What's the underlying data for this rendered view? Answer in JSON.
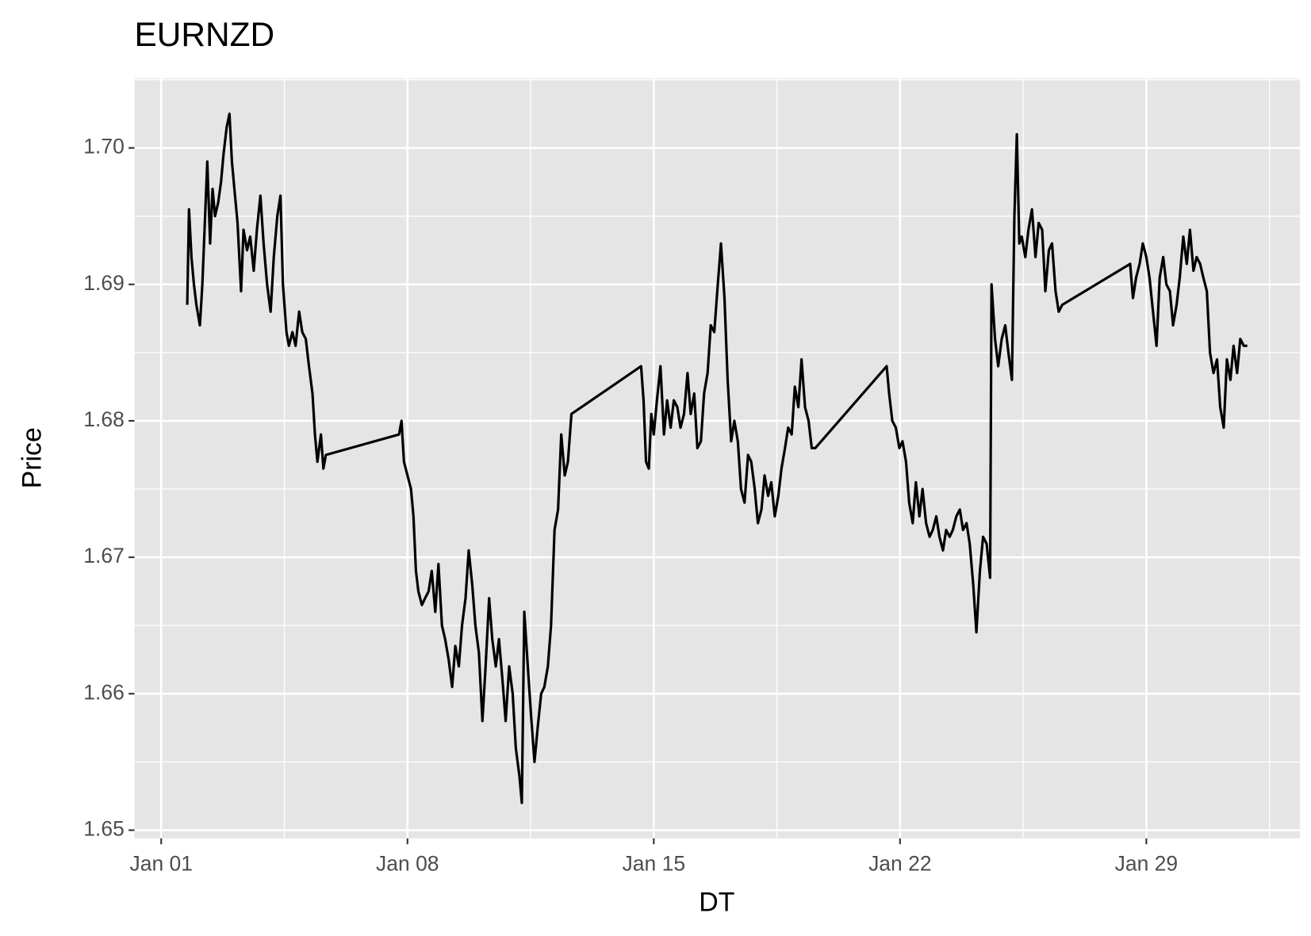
{
  "chart_data": {
    "type": "line",
    "title": "EURNZD",
    "x_label": "DT",
    "y_label": "Price",
    "x": [
      1.74,
      1.79,
      1.86,
      1.93,
      2.0,
      2.1,
      2.17,
      2.24,
      2.31,
      2.39,
      2.46,
      2.53,
      2.62,
      2.7,
      2.77,
      2.86,
      2.94,
      3.01,
      3.08,
      3.17,
      3.27,
      3.34,
      3.44,
      3.53,
      3.63,
      3.72,
      3.82,
      3.91,
      4.01,
      4.11,
      4.2,
      4.3,
      4.39,
      4.46,
      4.56,
      4.63,
      4.73,
      4.82,
      4.92,
      5.01,
      5.11,
      5.2,
      5.3,
      5.37,
      5.44,
      5.54,
      5.61,
      5.68,
      7.76,
      7.83,
      7.9,
      8.0,
      8.1,
      8.17,
      8.24,
      8.31,
      8.41,
      8.5,
      8.6,
      8.69,
      8.79,
      8.88,
      8.98,
      9.07,
      9.17,
      9.27,
      9.36,
      9.46,
      9.55,
      9.65,
      9.74,
      9.84,
      9.93,
      10.03,
      10.13,
      10.22,
      10.32,
      10.41,
      10.51,
      10.6,
      10.7,
      10.79,
      10.89,
      10.99,
      11.08,
      11.18,
      11.25,
      11.32,
      11.42,
      11.51,
      11.61,
      11.7,
      11.8,
      11.89,
      11.99,
      12.08,
      12.18,
      12.28,
      12.37,
      12.47,
      12.56,
      12.66,
      14.64,
      14.71,
      14.78,
      14.86,
      14.93,
      15.0,
      15.09,
      15.19,
      15.29,
      15.38,
      15.48,
      15.57,
      15.67,
      15.76,
      15.86,
      15.96,
      16.05,
      16.15,
      16.24,
      16.34,
      16.43,
      16.53,
      16.62,
      16.72,
      16.82,
      16.91,
      17.01,
      17.1,
      17.2,
      17.29,
      17.39,
      17.48,
      17.58,
      17.68,
      17.77,
      17.87,
      17.96,
      18.06,
      18.15,
      18.25,
      18.34,
      18.44,
      18.54,
      18.63,
      18.73,
      18.82,
      18.92,
      19.01,
      19.11,
      19.2,
      19.3,
      19.4,
      19.49,
      19.59,
      21.62,
      21.69,
      21.78,
      21.88,
      21.98,
      22.07,
      22.17,
      22.26,
      22.36,
      22.45,
      22.55,
      22.64,
      22.74,
      22.84,
      22.93,
      23.03,
      23.12,
      23.22,
      23.31,
      23.41,
      23.5,
      23.6,
      23.7,
      23.79,
      23.89,
      23.98,
      24.08,
      24.17,
      24.27,
      24.36,
      24.46,
      24.56,
      24.6,
      24.7,
      24.79,
      24.89,
      24.99,
      25.08,
      25.18,
      25.25,
      25.32,
      25.39,
      25.46,
      25.56,
      25.65,
      25.75,
      25.85,
      25.94,
      26.04,
      26.13,
      26.23,
      26.32,
      26.42,
      26.51,
      26.61,
      28.54,
      28.62,
      28.71,
      28.81,
      28.9,
      29.0,
      29.09,
      29.19,
      29.29,
      29.38,
      29.48,
      29.57,
      29.67,
      29.76,
      29.86,
      29.95,
      30.05,
      30.15,
      30.24,
      30.34,
      30.43,
      30.53,
      30.62,
      30.72,
      30.81,
      30.91,
      31.01,
      31.1,
      31.2,
      31.29,
      31.39,
      31.48,
      31.58,
      31.67,
      31.77,
      31.87
    ],
    "values": [
      1.6885,
      1.6955,
      1.692,
      1.69,
      1.6885,
      1.687,
      1.69,
      1.6945,
      1.699,
      1.693,
      1.697,
      1.695,
      1.696,
      1.6975,
      1.6995,
      1.7015,
      1.7025,
      1.699,
      1.697,
      1.6945,
      1.6895,
      1.694,
      1.6925,
      1.6935,
      1.691,
      1.694,
      1.6965,
      1.693,
      1.69,
      1.688,
      1.692,
      1.695,
      1.6965,
      1.69,
      1.6865,
      1.6855,
      1.6865,
      1.6855,
      1.688,
      1.6865,
      1.686,
      1.684,
      1.682,
      1.679,
      1.677,
      1.679,
      1.6765,
      1.6775,
      1.679,
      1.68,
      1.677,
      1.676,
      1.675,
      1.673,
      1.669,
      1.6675,
      1.6665,
      1.667,
      1.6675,
      1.669,
      1.666,
      1.6695,
      1.665,
      1.664,
      1.6625,
      1.6605,
      1.6635,
      1.662,
      1.665,
      1.667,
      1.6705,
      1.668,
      1.665,
      1.663,
      1.658,
      1.662,
      1.667,
      1.664,
      1.662,
      1.664,
      1.661,
      1.658,
      1.662,
      1.66,
      1.656,
      1.654,
      1.652,
      1.666,
      1.662,
      1.6585,
      1.655,
      1.6575,
      1.66,
      1.6605,
      1.662,
      1.665,
      1.672,
      1.6735,
      1.679,
      1.676,
      1.677,
      1.6805,
      1.684,
      1.6815,
      1.677,
      1.6765,
      1.6805,
      1.679,
      1.6815,
      1.684,
      1.679,
      1.6815,
      1.6795,
      1.6815,
      1.681,
      1.6795,
      1.6805,
      1.6835,
      1.6805,
      1.682,
      1.678,
      1.6785,
      1.682,
      1.6835,
      1.687,
      1.6865,
      1.69,
      1.693,
      1.689,
      1.683,
      1.6785,
      1.68,
      1.6785,
      1.675,
      1.674,
      1.6775,
      1.677,
      1.675,
      1.6725,
      1.6735,
      1.676,
      1.6745,
      1.6755,
      1.673,
      1.6745,
      1.6765,
      1.678,
      1.6795,
      1.679,
      1.6825,
      1.681,
      1.6845,
      1.681,
      1.68,
      1.678,
      1.678,
      1.684,
      1.682,
      1.68,
      1.6795,
      1.678,
      1.6785,
      1.677,
      1.674,
      1.6725,
      1.6755,
      1.673,
      1.675,
      1.6725,
      1.6715,
      1.672,
      1.673,
      1.6715,
      1.6705,
      1.672,
      1.6715,
      1.672,
      1.673,
      1.6735,
      1.672,
      1.6725,
      1.671,
      1.668,
      1.6645,
      1.669,
      1.6715,
      1.671,
      1.6685,
      1.69,
      1.686,
      1.684,
      1.686,
      1.687,
      1.685,
      1.683,
      1.695,
      1.701,
      1.693,
      1.6935,
      1.692,
      1.694,
      1.6955,
      1.692,
      1.6945,
      1.694,
      1.6895,
      1.6925,
      1.693,
      1.6895,
      1.688,
      1.6885,
      1.6915,
      1.689,
      1.6905,
      1.6915,
      1.693,
      1.692,
      1.6905,
      1.688,
      1.6855,
      1.6905,
      1.692,
      1.69,
      1.6895,
      1.687,
      1.6885,
      1.6905,
      1.6935,
      1.6915,
      1.694,
      1.691,
      1.692,
      1.6915,
      1.6905,
      1.6895,
      1.685,
      1.6835,
      1.6845,
      1.681,
      1.6795,
      1.6845,
      1.683,
      1.6855,
      1.6835,
      1.686,
      1.6855,
      1.6855
    ],
    "color": "#000000",
    "xlim": [
      0.24,
      33.37
    ],
    "ylim": [
      1.6494,
      1.7051
    ],
    "xticks": [
      {
        "value": 1,
        "label": "Jan 01"
      },
      {
        "value": 8,
        "label": "Jan 08"
      },
      {
        "value": 15,
        "label": "Jan 15"
      },
      {
        "value": 22,
        "label": "Jan 22"
      },
      {
        "value": 29,
        "label": "Jan 29"
      }
    ],
    "yticks": [
      1.65,
      1.66,
      1.67,
      1.68,
      1.69,
      {
        "value": 1.7,
        "label": "1.70"
      }
    ],
    "grid": true
  }
}
